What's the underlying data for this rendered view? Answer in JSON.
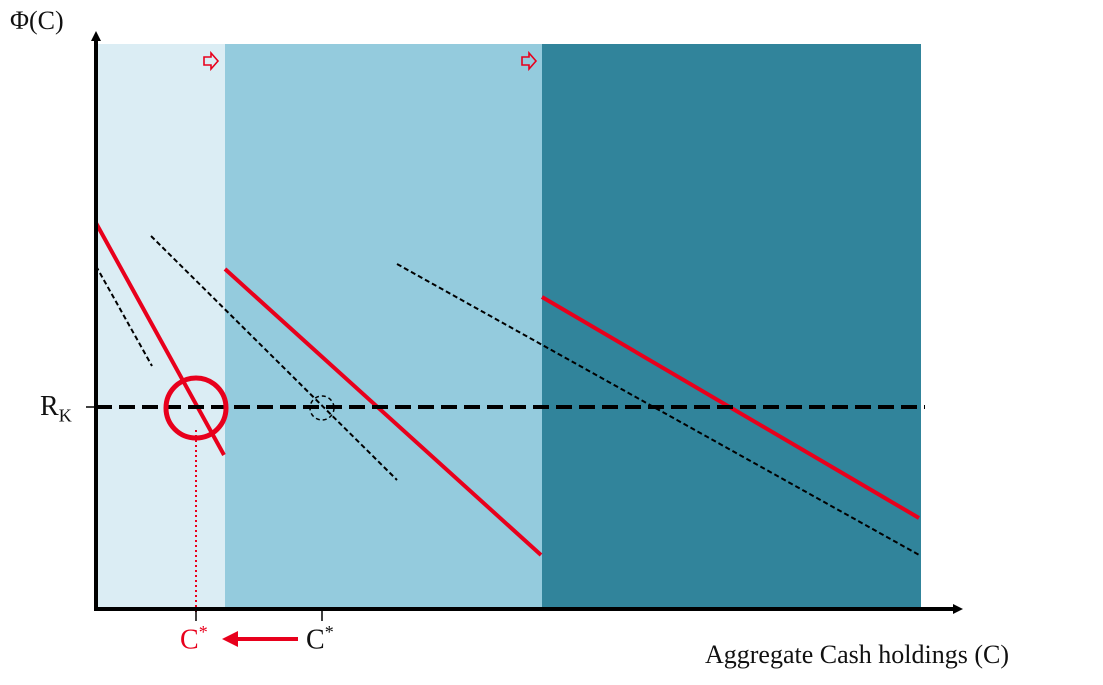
{
  "diagram": {
    "y_axis_label": "Φ(C)",
    "x_axis_label": "Aggregate Cash holdings (C)",
    "rk_label_main": "R",
    "rk_label_sub": "K",
    "cstar_new_label": "C",
    "cstar_new_sup": "*",
    "cstar_old_label": "C",
    "cstar_old_sup": "*",
    "region_colors": [
      "#dbedf4",
      "#94cbdd",
      "#31849b"
    ],
    "shift_arrow_color": "#e8001c",
    "curve_color": "#e8001c",
    "dashed_color": "#000000"
  }
}
